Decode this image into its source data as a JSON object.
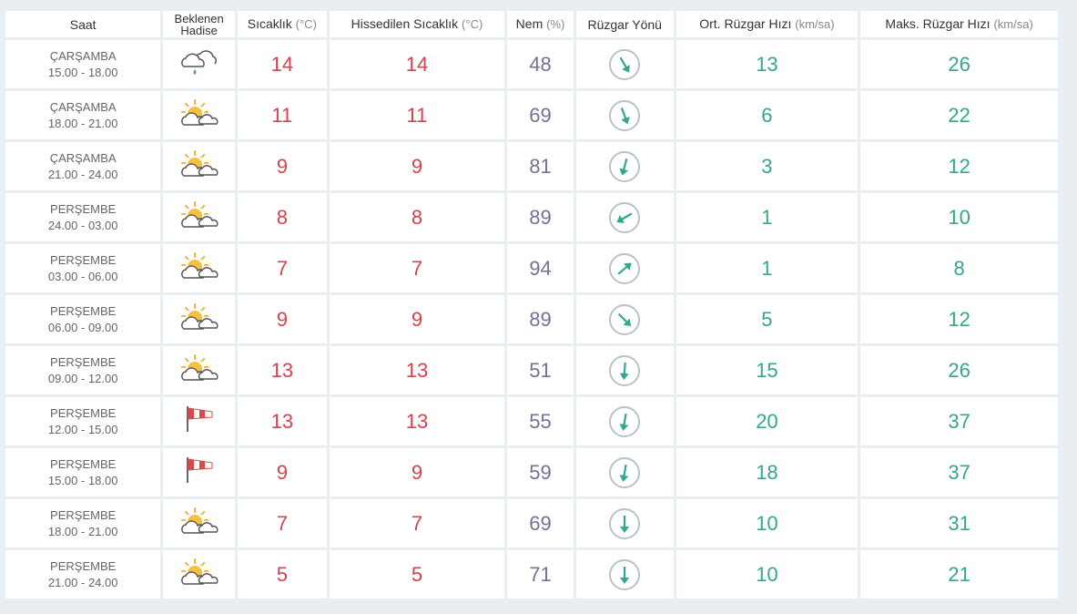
{
  "headers": {
    "saat": "Saat",
    "hadise_line1": "Beklenen",
    "hadise_line2": "Hadise",
    "sicaklik": "Sıcaklık",
    "sicaklik_unit": "(°C)",
    "hissedilen": "Hissedilen Sıcaklık",
    "hissedilen_unit": "(°C)",
    "nem": "Nem",
    "nem_unit": "(%)",
    "ruzgar_yonu": "Rüzgar Yönü",
    "ort_ruzgar": "Ort. Rüzgar Hızı",
    "ort_ruzgar_unit": "(km/sa)",
    "maks_ruzgar": "Maks. Rüzgar Hızı",
    "maks_ruzgar_unit": "(km/sa)"
  },
  "colors": {
    "temp": "#d8404d",
    "humidity": "#7a6f92",
    "wind": "#31a78e",
    "arrow": "#31a78e"
  },
  "rows": [
    {
      "day": "ÇARŞAMBA",
      "time": "15.00 - 18.00",
      "icon": "rain-cloud-icon",
      "temp": "14",
      "feels": "14",
      "humidity": "48",
      "wind_dir_deg": 150,
      "avg_wind": "13",
      "max_wind": "26"
    },
    {
      "day": "ÇARŞAMBA",
      "time": "18.00 - 21.00",
      "icon": "partly-cloudy-icon",
      "temp": "11",
      "feels": "11",
      "humidity": "69",
      "wind_dir_deg": 160,
      "avg_wind": "6",
      "max_wind": "22"
    },
    {
      "day": "ÇARŞAMBA",
      "time": "21.00 - 24.00",
      "icon": "partly-cloudy-icon",
      "temp": "9",
      "feels": "9",
      "humidity": "81",
      "wind_dir_deg": 195,
      "avg_wind": "3",
      "max_wind": "12"
    },
    {
      "day": "PERŞEMBE",
      "time": "24.00 - 03.00",
      "icon": "partly-cloudy-icon",
      "temp": "8",
      "feels": "8",
      "humidity": "89",
      "wind_dir_deg": 240,
      "avg_wind": "1",
      "max_wind": "10"
    },
    {
      "day": "PERŞEMBE",
      "time": "03.00 - 06.00",
      "icon": "partly-cloudy-icon",
      "temp": "7",
      "feels": "7",
      "humidity": "94",
      "wind_dir_deg": 50,
      "avg_wind": "1",
      "max_wind": "8"
    },
    {
      "day": "PERŞEMBE",
      "time": "06.00 - 09.00",
      "icon": "partly-cloudy-icon",
      "temp": "9",
      "feels": "9",
      "humidity": "89",
      "wind_dir_deg": 135,
      "avg_wind": "5",
      "max_wind": "12"
    },
    {
      "day": "PERŞEMBE",
      "time": "09.00 - 12.00",
      "icon": "partly-cloudy-icon",
      "temp": "13",
      "feels": "13",
      "humidity": "51",
      "wind_dir_deg": 185,
      "avg_wind": "15",
      "max_wind": "26"
    },
    {
      "day": "PERŞEMBE",
      "time": "12.00 - 15.00",
      "icon": "windsock-icon",
      "temp": "13",
      "feels": "13",
      "humidity": "55",
      "wind_dir_deg": 190,
      "avg_wind": "20",
      "max_wind": "37"
    },
    {
      "day": "PERŞEMBE",
      "time": "15.00 - 18.00",
      "icon": "windsock-icon",
      "temp": "9",
      "feels": "9",
      "humidity": "59",
      "wind_dir_deg": 190,
      "avg_wind": "18",
      "max_wind": "37"
    },
    {
      "day": "PERŞEMBE",
      "time": "18.00 - 21.00",
      "icon": "partly-cloudy-icon",
      "temp": "7",
      "feels": "7",
      "humidity": "69",
      "wind_dir_deg": 180,
      "avg_wind": "10",
      "max_wind": "31"
    },
    {
      "day": "PERŞEMBE",
      "time": "21.00 - 24.00",
      "icon": "partly-cloudy-icon",
      "temp": "5",
      "feels": "5",
      "humidity": "71",
      "wind_dir_deg": 180,
      "avg_wind": "10",
      "max_wind": "21"
    }
  ]
}
